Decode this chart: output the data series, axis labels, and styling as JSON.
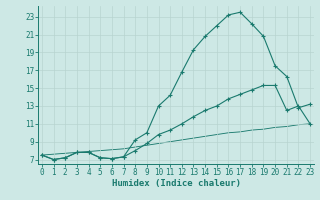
{
  "title": "",
  "xlabel": "Humidex (Indice chaleur)",
  "bg_color": "#cde8e5",
  "line_color": "#1a7a6e",
  "grid_color": "#b8d4d0",
  "x_ticks": [
    0,
    1,
    2,
    3,
    4,
    5,
    6,
    7,
    8,
    9,
    10,
    11,
    12,
    13,
    14,
    15,
    16,
    17,
    18,
    19,
    20,
    21,
    22,
    23
  ],
  "y_ticks": [
    7,
    9,
    11,
    13,
    15,
    17,
    19,
    21,
    23
  ],
  "xlim": [
    -0.3,
    23.3
  ],
  "ylim": [
    6.5,
    24.2
  ],
  "line1_x": [
    0,
    1,
    2,
    3,
    4,
    5,
    6,
    7,
    8,
    9,
    10,
    11,
    12,
    13,
    14,
    15,
    16,
    17,
    18,
    19,
    20,
    21,
    22,
    23
  ],
  "line1_y": [
    7.5,
    7.0,
    7.2,
    7.8,
    7.8,
    7.2,
    7.1,
    7.3,
    9.2,
    10.0,
    13.0,
    14.2,
    16.8,
    19.3,
    20.8,
    22.0,
    23.2,
    23.5,
    22.2,
    20.8,
    17.5,
    16.3,
    12.8,
    13.2
  ],
  "line2_x": [
    0,
    1,
    2,
    3,
    4,
    5,
    6,
    7,
    8,
    9,
    10,
    11,
    12,
    13,
    14,
    15,
    16,
    17,
    18,
    19,
    20,
    21,
    22,
    23
  ],
  "line2_y": [
    7.5,
    7.0,
    7.2,
    7.8,
    7.8,
    7.2,
    7.1,
    7.3,
    8.0,
    8.8,
    9.8,
    10.3,
    11.0,
    11.8,
    12.5,
    13.0,
    13.8,
    14.3,
    14.8,
    15.3,
    15.3,
    12.5,
    13.0,
    11.0
  ],
  "line3_x": [
    0,
    1,
    2,
    3,
    4,
    5,
    6,
    7,
    8,
    9,
    10,
    11,
    12,
    13,
    14,
    15,
    16,
    17,
    18,
    19,
    20,
    21,
    22,
    23
  ],
  "line3_y": [
    7.5,
    7.6,
    7.7,
    7.8,
    7.9,
    8.0,
    8.1,
    8.2,
    8.4,
    8.6,
    8.8,
    9.0,
    9.2,
    9.4,
    9.6,
    9.8,
    10.0,
    10.1,
    10.3,
    10.4,
    10.6,
    10.7,
    10.9,
    11.0
  ],
  "tick_fontsize": 5.5,
  "xlabel_fontsize": 6.5,
  "marker_size": 2.0,
  "lw": 0.8
}
